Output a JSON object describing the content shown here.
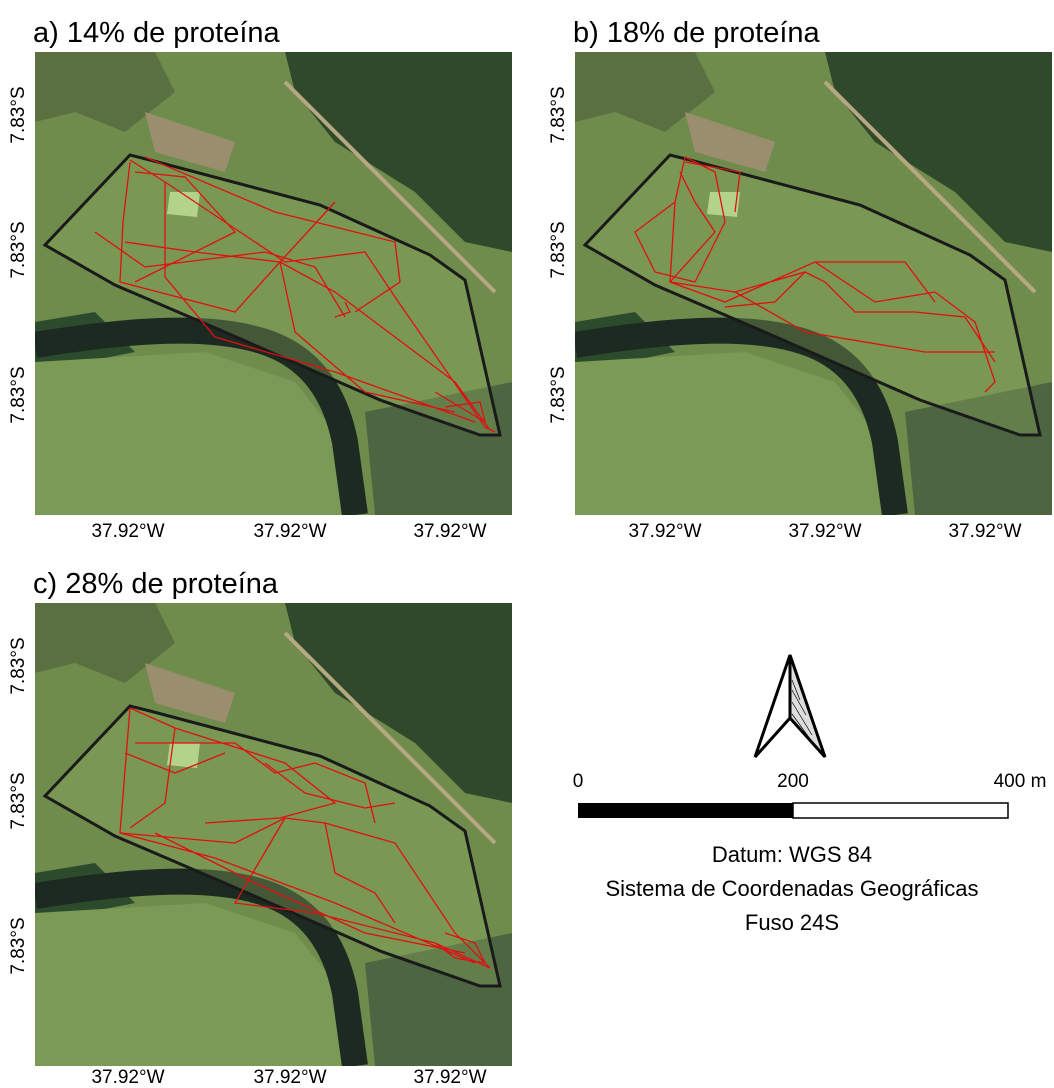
{
  "panels": [
    {
      "title": "a) 14% de proteína",
      "lat_labels": [
        "7.83°S",
        "7.83°S",
        "7.83°S"
      ],
      "lon_labels": [
        "37.92°W",
        "37.92°W",
        "37.92°W"
      ]
    },
    {
      "title": "b) 18% de proteína",
      "lat_labels": [
        "7.83°S",
        "7.83°S",
        "7.83°S"
      ],
      "lon_labels": [
        "37.92°W",
        "37.92°W",
        "37.92°W"
      ]
    },
    {
      "title": "c) 28% de proteína",
      "lat_labels": [
        "7.83°S",
        "7.83°S",
        "7.83°S"
      ],
      "lon_labels": [
        "37.92°W",
        "37.92°W",
        "37.92°W"
      ]
    }
  ],
  "scale_bar": {
    "labels": [
      "0",
      "200",
      "400 m"
    ]
  },
  "notes": [
    "Datum: WGS 84",
    "Sistema de Coordenadas Geográficas",
    "Fuso 24S"
  ]
}
